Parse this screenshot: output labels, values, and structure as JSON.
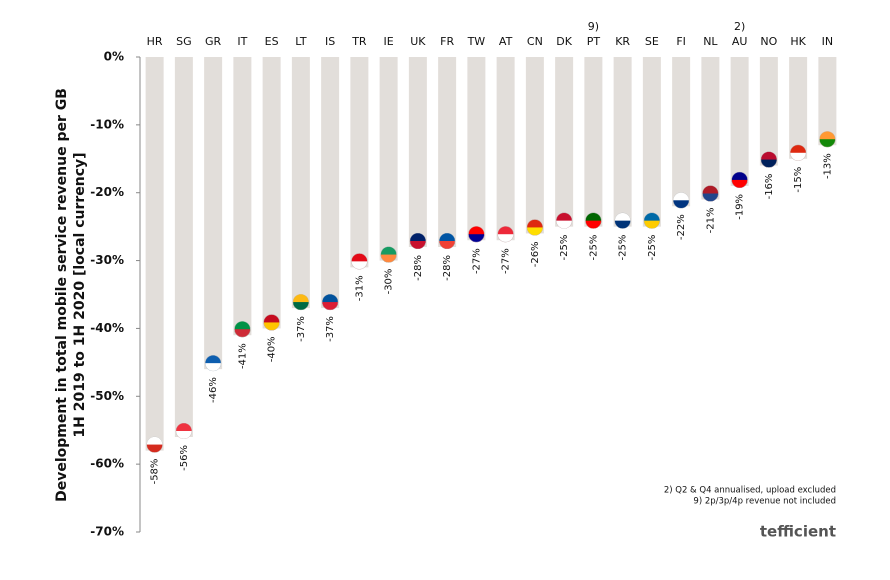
{
  "chart_data": {
    "type": "bar",
    "y_label_lines": [
      "Development in total mobile service revenue per GB",
      "1H 2019 to 1H 2020 [local currency]"
    ],
    "categories": [
      "HR",
      "SG",
      "GR",
      "IT",
      "ES",
      "LT",
      "IS",
      "TR",
      "IE",
      "UK",
      "FR",
      "TW",
      "AT",
      "CN",
      "DK",
      "PT",
      "KR",
      "SE",
      "FI",
      "NL",
      "AU",
      "NO",
      "HK",
      "IN"
    ],
    "category_notes": [
      null,
      null,
      null,
      null,
      null,
      null,
      null,
      null,
      null,
      null,
      null,
      null,
      null,
      null,
      null,
      "9)",
      null,
      null,
      null,
      null,
      "2)",
      null,
      null,
      null
    ],
    "values": [
      -58,
      -56,
      -46,
      -41,
      -40,
      -37,
      -37,
      -31,
      -30,
      -28,
      -28,
      -27,
      -27,
      -26,
      -25,
      -25,
      -25,
      -25,
      -22,
      -21,
      -19,
      -16,
      -15,
      -13
    ],
    "value_labels": [
      "-58%",
      "-56%",
      "-46%",
      "-41%",
      "-40%",
      "-37%",
      "-37%",
      "-31%",
      "-30%",
      "-28%",
      "-28%",
      "-27%",
      "-27%",
      "-26%",
      "-25%",
      "-25%",
      "-25%",
      "-25%",
      "-22%",
      "-21%",
      "-19%",
      "-16%",
      "-15%",
      "-13%"
    ],
    "color": "#e2deda",
    "flag_colors": [
      [
        "#ffffff",
        "#d52b1e"
      ],
      [
        "#ef3340",
        "#ffffff"
      ],
      [
        "#0d5eaf",
        "#ffffff"
      ],
      [
        "#009246",
        "#ce2b37"
      ],
      [
        "#c60b1e",
        "#ffc400"
      ],
      [
        "#fdb913",
        "#006a44"
      ],
      [
        "#02529c",
        "#dc1e35"
      ],
      [
        "#e30a17",
        "#ffffff"
      ],
      [
        "#169b62",
        "#ff883e"
      ],
      [
        "#012169",
        "#c8102e"
      ],
      [
        "#0055a4",
        "#ef4135"
      ],
      [
        "#fe0000",
        "#000095"
      ],
      [
        "#ed2939",
        "#ffffff"
      ],
      [
        "#de2910",
        "#ffde00"
      ],
      [
        "#c8102e",
        "#ffffff"
      ],
      [
        "#006600",
        "#ff0000"
      ],
      [
        "#ffffff",
        "#003478"
      ],
      [
        "#006aa7",
        "#fecc00"
      ],
      [
        "#ffffff",
        "#003580"
      ],
      [
        "#ae1c28",
        "#21468b"
      ],
      [
        "#00008b",
        "#ff0000"
      ],
      [
        "#ba0c2f",
        "#00205b"
      ],
      [
        "#de2910",
        "#ffffff"
      ],
      [
        "#ff9933",
        "#138808"
      ]
    ],
    "ylim": [
      -70,
      0
    ],
    "yticks": [
      {
        "value": 0,
        "label": "0%"
      },
      {
        "value": -10,
        "label": "-10%"
      },
      {
        "value": -20,
        "label": "-20%"
      },
      {
        "value": -30,
        "label": "-30%"
      },
      {
        "value": -40,
        "label": "-40%"
      },
      {
        "value": -50,
        "label": "-50%"
      },
      {
        "value": -60,
        "label": "-60%"
      },
      {
        "value": -70,
        "label": "-70%"
      }
    ],
    "footnotes": [
      "2) Q2 & Q4 annualised, upload excluded",
      "9) 2p/3p/4p revenue not included"
    ],
    "logo": "tefficient"
  }
}
